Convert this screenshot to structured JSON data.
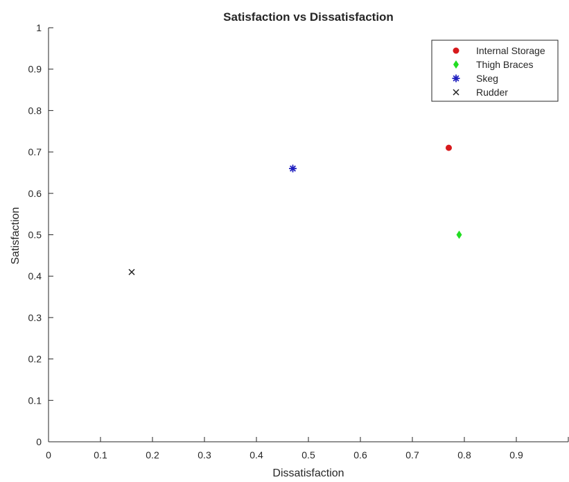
{
  "chart_data": {
    "type": "scatter",
    "title": "Satisfaction vs Dissatisfaction",
    "xlabel": "Dissatisfaction",
    "ylabel": "Satisfaction",
    "xlim": [
      0,
      1
    ],
    "ylim": [
      0,
      1
    ],
    "xticks": [
      0,
      0.1,
      0.2,
      0.3,
      0.4,
      0.5,
      0.6,
      0.7,
      0.8,
      0.9,
      1
    ],
    "xtick_labels": [
      "0",
      "0.1",
      "0.2",
      "0.3",
      "0.4",
      "0.5",
      "0.6",
      "0.7",
      "0.8",
      "0.9",
      ""
    ],
    "yticks": [
      0,
      0.1,
      0.2,
      0.3,
      0.4,
      0.5,
      0.6,
      0.7,
      0.8,
      0.9,
      1
    ],
    "ytick_labels": [
      "0",
      "0.1",
      "0.2",
      "0.3",
      "0.4",
      "0.5",
      "0.6",
      "0.7",
      "0.8",
      "0.9",
      "1"
    ],
    "grid": false,
    "legend_position": "top-right",
    "series": [
      {
        "name": "Internal Storage",
        "marker": "circle",
        "color": "#d7191c",
        "points": [
          {
            "x": 0.77,
            "y": 0.71
          }
        ]
      },
      {
        "name": "Thigh Braces",
        "marker": "diamond",
        "color": "#22dd22",
        "points": [
          {
            "x": 0.79,
            "y": 0.5
          }
        ]
      },
      {
        "name": "Skeg",
        "marker": "asterisk",
        "color": "#1f1fbf",
        "points": [
          {
            "x": 0.47,
            "y": 0.66
          }
        ]
      },
      {
        "name": "Rudder",
        "marker": "x",
        "color": "#222222",
        "points": [
          {
            "x": 0.16,
            "y": 0.41
          }
        ]
      }
    ]
  }
}
